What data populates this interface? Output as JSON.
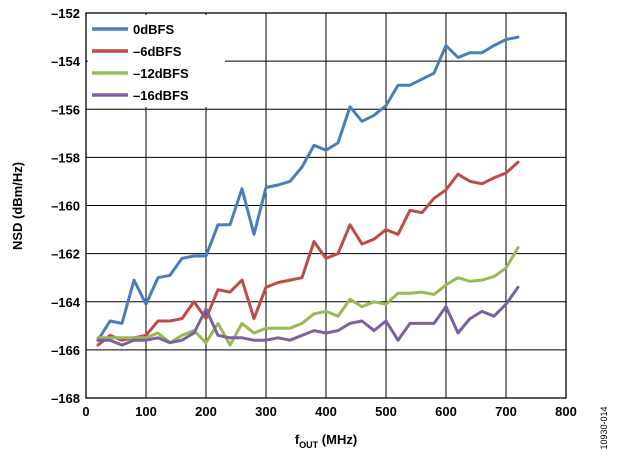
{
  "chart_data": {
    "type": "line",
    "xlabel_main": "f",
    "xlabel_sub": "OUT",
    "xlabel_rest": " (MHz)",
    "ylabel": "NSD (dBm/Hz)",
    "xlim": [
      0,
      800
    ],
    "ylim": [
      -168,
      -152
    ],
    "xticks": [
      "0",
      "100",
      "200",
      "300",
      "400",
      "500",
      "600",
      "700",
      "800"
    ],
    "yticks": [
      "–152",
      "–154",
      "–156",
      "–158",
      "–160",
      "–162",
      "–164",
      "–166",
      "–168"
    ],
    "grid": true,
    "legend_position": "top-left",
    "figure_id": "10930-014",
    "series": [
      {
        "name": "0dBFS",
        "color": "#4a7ebb",
        "x": [
          20,
          40,
          60,
          80,
          100,
          120,
          140,
          160,
          180,
          200,
          220,
          240,
          260,
          280,
          300,
          320,
          340,
          360,
          380,
          400,
          420,
          440,
          460,
          480,
          500,
          520,
          540,
          560,
          580,
          600,
          620,
          640,
          660,
          680,
          700,
          720
        ],
        "y": [
          -165.6,
          -164.8,
          -164.9,
          -163.1,
          -164.1,
          -163.0,
          -162.9,
          -162.2,
          -162.1,
          -162.1,
          -160.8,
          -160.8,
          -159.3,
          -161.2,
          -159.25,
          -159.15,
          -159.0,
          -158.4,
          -157.5,
          -157.7,
          -157.4,
          -155.9,
          -156.5,
          -156.25,
          -155.85,
          -155.0,
          -155.0,
          -154.75,
          -154.5,
          -153.35,
          -153.85,
          -153.65,
          -153.65,
          -153.35,
          -153.1,
          -153.0
        ]
      },
      {
        "name": "–6dBFS",
        "color": "#be4b48",
        "x": [
          20,
          40,
          60,
          80,
          100,
          120,
          140,
          160,
          180,
          200,
          220,
          240,
          260,
          280,
          300,
          320,
          340,
          360,
          380,
          400,
          420,
          440,
          460,
          480,
          500,
          520,
          540,
          560,
          580,
          600,
          620,
          640,
          660,
          680,
          700,
          720
        ],
        "y": [
          -165.8,
          -165.4,
          -165.6,
          -165.5,
          -165.4,
          -164.8,
          -164.8,
          -164.7,
          -164.0,
          -164.7,
          -163.5,
          -163.6,
          -163.1,
          -164.7,
          -163.4,
          -163.2,
          -163.1,
          -163.0,
          -161.5,
          -162.2,
          -162.0,
          -160.8,
          -161.6,
          -161.4,
          -161.0,
          -161.2,
          -160.2,
          -160.3,
          -159.7,
          -159.35,
          -158.7,
          -159.0,
          -159.1,
          -158.85,
          -158.65,
          -158.2
        ]
      },
      {
        "name": "–12dBFS",
        "color": "#98b954",
        "x": [
          20,
          40,
          60,
          80,
          100,
          120,
          140,
          160,
          180,
          200,
          220,
          240,
          260,
          280,
          300,
          320,
          340,
          360,
          380,
          400,
          420,
          440,
          460,
          480,
          500,
          520,
          540,
          560,
          580,
          600,
          620,
          640,
          660,
          680,
          700,
          720
        ],
        "y": [
          -165.5,
          -165.5,
          -165.5,
          -165.5,
          -165.5,
          -165.3,
          -165.7,
          -165.4,
          -165.2,
          -165.7,
          -164.9,
          -165.8,
          -164.9,
          -165.3,
          -165.1,
          -165.1,
          -165.1,
          -164.9,
          -164.5,
          -164.4,
          -164.6,
          -163.9,
          -164.2,
          -164.0,
          -164.1,
          -163.65,
          -163.65,
          -163.6,
          -163.7,
          -163.3,
          -163.0,
          -163.15,
          -163.1,
          -162.95,
          -162.6,
          -161.75
        ]
      },
      {
        "name": "–16dBFS",
        "color": "#7d60a0",
        "x": [
          20,
          40,
          60,
          80,
          100,
          120,
          140,
          160,
          180,
          200,
          220,
          240,
          260,
          280,
          300,
          320,
          340,
          360,
          380,
          400,
          420,
          440,
          460,
          480,
          500,
          520,
          540,
          560,
          580,
          600,
          620,
          640,
          660,
          680,
          700,
          720
        ],
        "y": [
          -165.6,
          -165.6,
          -165.8,
          -165.6,
          -165.6,
          -165.5,
          -165.7,
          -165.6,
          -165.3,
          -164.3,
          -165.4,
          -165.5,
          -165.5,
          -165.6,
          -165.6,
          -165.5,
          -165.6,
          -165.4,
          -165.2,
          -165.3,
          -165.2,
          -164.9,
          -164.8,
          -165.2,
          -164.8,
          -165.6,
          -164.9,
          -164.9,
          -164.9,
          -164.2,
          -165.3,
          -164.7,
          -164.4,
          -164.6,
          -164.1,
          -163.4
        ]
      }
    ]
  }
}
